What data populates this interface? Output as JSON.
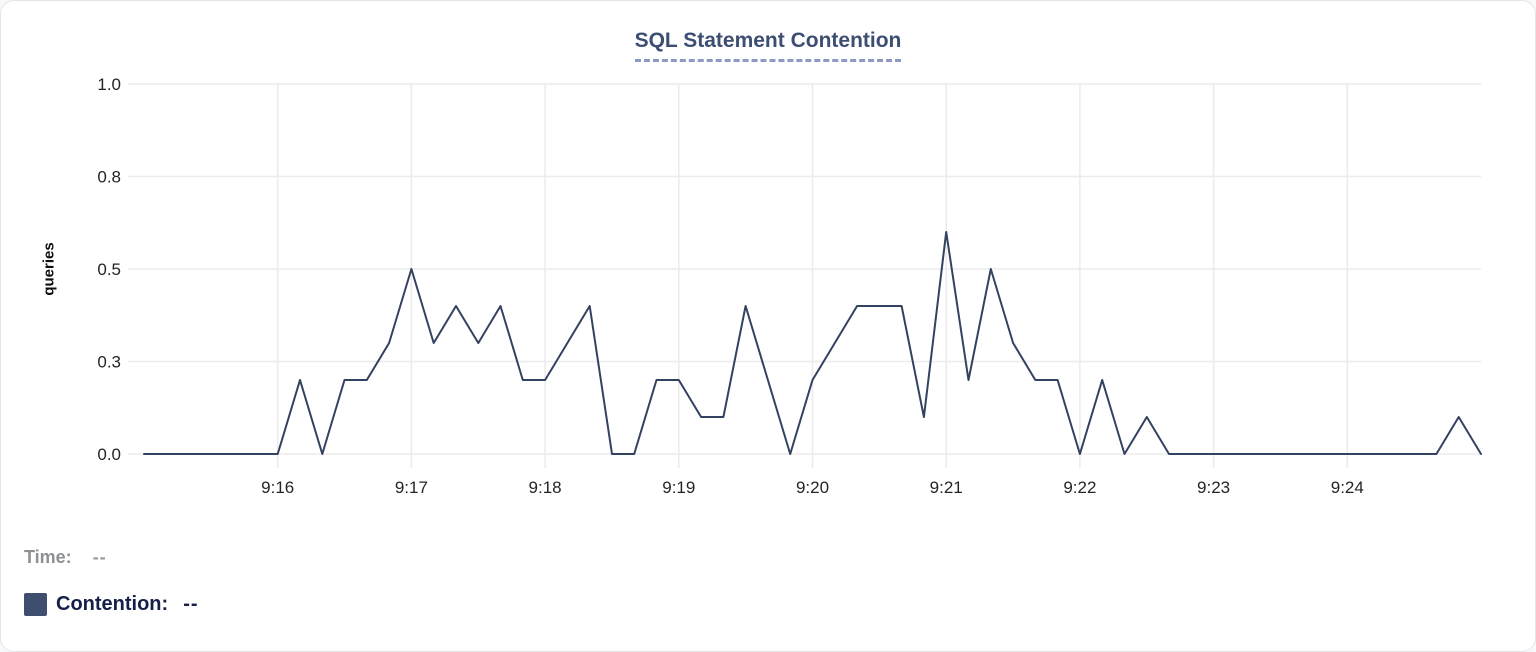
{
  "title": "SQL Statement Contention",
  "chart_data": {
    "type": "line",
    "title": "SQL Statement Contention",
    "xlabel": "",
    "ylabel": "queries",
    "ylim": [
      0,
      1.0
    ],
    "grid": true,
    "legend_position": "bottom-left",
    "x_range": [
      "9:15:00",
      "9:25:00"
    ],
    "y_ticks": [
      {
        "value": 0,
        "label": "0.0"
      },
      {
        "value": 0.25,
        "label": "0.3"
      },
      {
        "value": 0.5,
        "label": "0.5"
      },
      {
        "value": 0.75,
        "label": "0.8"
      },
      {
        "value": 1.0,
        "label": "1.0"
      }
    ],
    "x_ticks": [
      {
        "time": "9:16:00",
        "label": "9:16"
      },
      {
        "time": "9:17:00",
        "label": "9:17"
      },
      {
        "time": "9:18:00",
        "label": "9:18"
      },
      {
        "time": "9:19:00",
        "label": "9:19"
      },
      {
        "time": "9:20:00",
        "label": "9:20"
      },
      {
        "time": "9:21:00",
        "label": "9:21"
      },
      {
        "time": "9:22:00",
        "label": "9:22"
      },
      {
        "time": "9:23:00",
        "label": "9:23"
      },
      {
        "time": "9:24:00",
        "label": "9:24"
      }
    ],
    "series": [
      {
        "name": "Contention",
        "color": "#344261",
        "points": [
          [
            "9:15:00",
            0
          ],
          [
            "9:15:10",
            0
          ],
          [
            "9:15:20",
            0
          ],
          [
            "9:15:30",
            0
          ],
          [
            "9:15:40",
            0
          ],
          [
            "9:15:50",
            0
          ],
          [
            "9:16:00",
            0
          ],
          [
            "9:16:10",
            0.2
          ],
          [
            "9:16:20",
            0
          ],
          [
            "9:16:30",
            0.2
          ],
          [
            "9:16:40",
            0.2
          ],
          [
            "9:16:50",
            0.3
          ],
          [
            "9:17:00",
            0.5
          ],
          [
            "9:17:10",
            0.3
          ],
          [
            "9:17:20",
            0.4
          ],
          [
            "9:17:30",
            0.3
          ],
          [
            "9:17:40",
            0.4
          ],
          [
            "9:17:50",
            0.2
          ],
          [
            "9:18:00",
            0.2
          ],
          [
            "9:18:10",
            0.3
          ],
          [
            "9:18:20",
            0.4
          ],
          [
            "9:18:30",
            0
          ],
          [
            "9:18:40",
            0
          ],
          [
            "9:18:50",
            0.2
          ],
          [
            "9:19:00",
            0.2
          ],
          [
            "9:19:10",
            0.1
          ],
          [
            "9:19:20",
            0.1
          ],
          [
            "9:19:30",
            0.4
          ],
          [
            "9:19:40",
            0.2
          ],
          [
            "9:19:50",
            0
          ],
          [
            "9:20:00",
            0.2
          ],
          [
            "9:20:10",
            0.3
          ],
          [
            "9:20:20",
            0.4
          ],
          [
            "9:20:30",
            0.4
          ],
          [
            "9:20:40",
            0.4
          ],
          [
            "9:20:50",
            0.1
          ],
          [
            "9:21:00",
            0.6
          ],
          [
            "9:21:10",
            0.2
          ],
          [
            "9:21:20",
            0.5
          ],
          [
            "9:21:30",
            0.3
          ],
          [
            "9:21:40",
            0.2
          ],
          [
            "9:21:50",
            0.2
          ],
          [
            "9:22:00",
            0
          ],
          [
            "9:22:10",
            0.2
          ],
          [
            "9:22:20",
            0
          ],
          [
            "9:22:30",
            0.1
          ],
          [
            "9:22:40",
            0
          ],
          [
            "9:22:50",
            0
          ],
          [
            "9:23:00",
            0
          ],
          [
            "9:23:10",
            0
          ],
          [
            "9:23:20",
            0
          ],
          [
            "9:23:30",
            0
          ],
          [
            "9:23:40",
            0
          ],
          [
            "9:23:50",
            0
          ],
          [
            "9:24:00",
            0
          ],
          [
            "9:24:10",
            0
          ],
          [
            "9:24:20",
            0
          ],
          [
            "9:24:30",
            0
          ],
          [
            "9:24:40",
            0
          ],
          [
            "9:24:50",
            0.1
          ],
          [
            "9:25:00",
            0
          ]
        ]
      }
    ]
  },
  "legend": {
    "time_label": "Time:",
    "time_value": "--",
    "contention_label": "Contention:",
    "contention_value": "--",
    "swatch_color": "#3d4e6e"
  },
  "colors": {
    "line": "#344261",
    "grid": "#ebebeb",
    "tick_text": "#232529",
    "title_text": "#3d4e73",
    "title_underline": "#8e99c5"
  }
}
